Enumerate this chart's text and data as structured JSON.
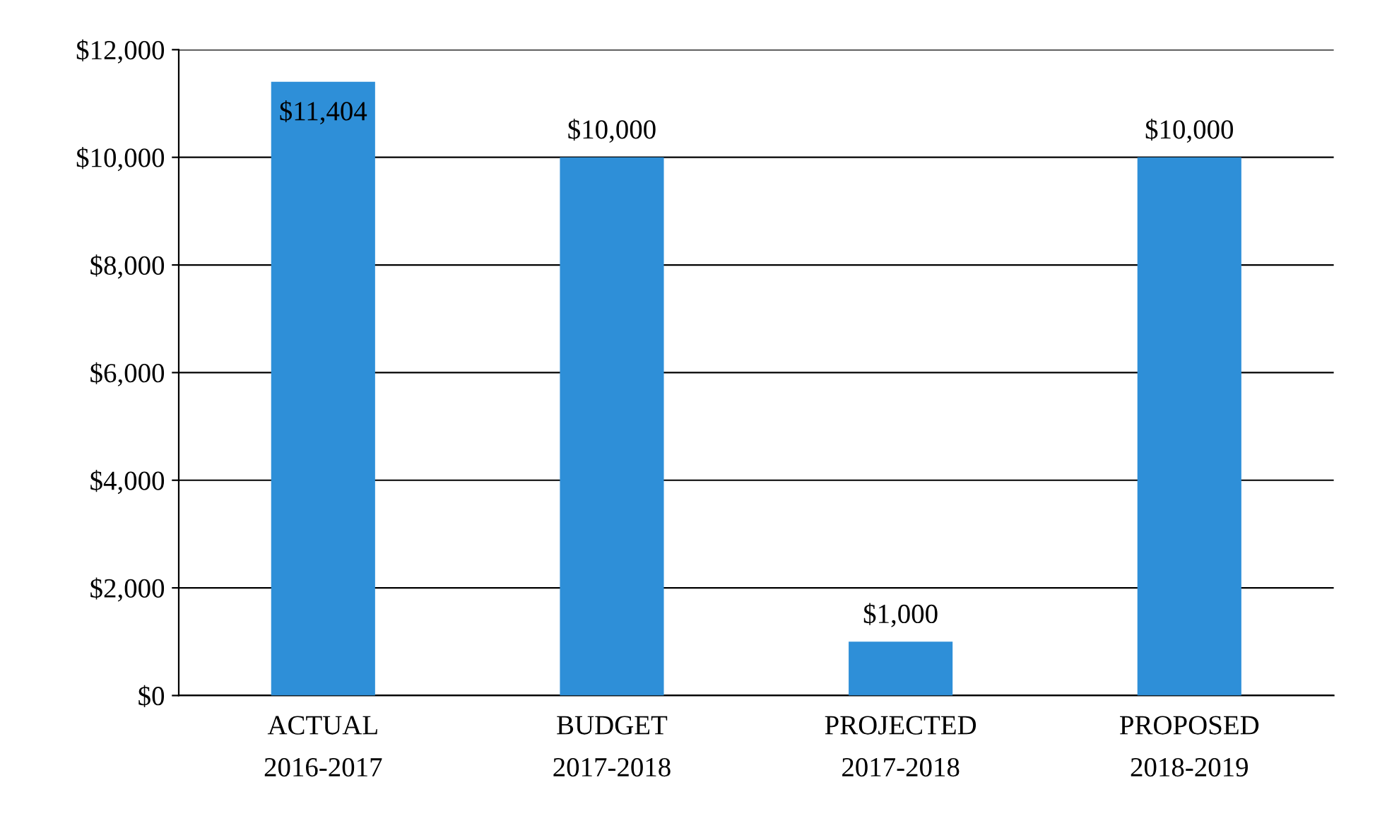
{
  "chart_data": {
    "type": "bar",
    "categories": [
      "ACTUAL\n2016-2017",
      "BUDGET\n2017-2018",
      "PROJECTED\n2017-2018",
      "PROPOSED\n2018-2019"
    ],
    "values": [
      11404,
      10000,
      1000,
      10000
    ],
    "color": "#2e8fd8",
    "value_labels": [
      "$11,404",
      "$10,000",
      "$1,000",
      "$10,000"
    ],
    "ylim": [
      0,
      12000
    ],
    "yticks": [
      {
        "value": 0,
        "label": "$0"
      },
      {
        "value": 2000,
        "label": "$2,000"
      },
      {
        "value": 4000,
        "label": "$4,000"
      },
      {
        "value": 6000,
        "label": "$6,000"
      },
      {
        "value": 8000,
        "label": "$8,000"
      },
      {
        "value": 10000,
        "label": "$10,000"
      },
      {
        "value": 12000,
        "label": "$12,000"
      }
    ],
    "grid": "y"
  }
}
